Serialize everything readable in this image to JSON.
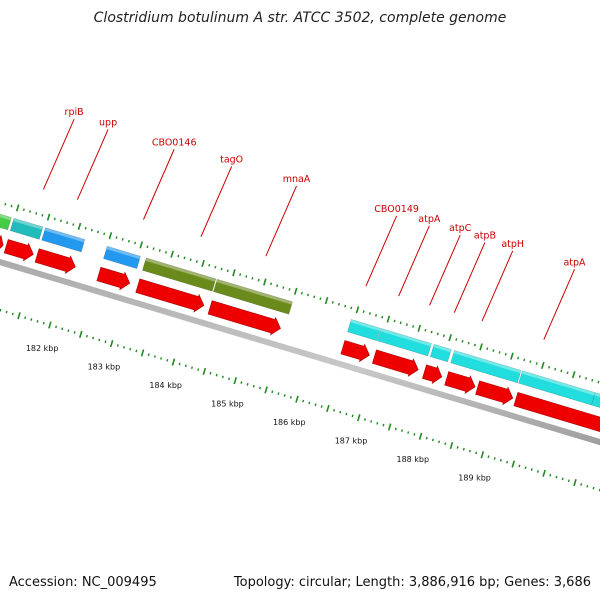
{
  "header": {
    "title": "Clostridium botulinum A str. ATCC 3502, complete genome"
  },
  "footer": {
    "accession": "Accession: NC_009495",
    "summary": "Topology: circular; Length: 3,886,916 bp; Genes: 3,686"
  },
  "colors": {
    "cds": "#ee0000",
    "gene_cyan": "#22dddd",
    "gene_blue": "#2299ee",
    "gene_olive": "#6a8a1c",
    "gene_teal": "#22bbbb",
    "gene_green": "#44cc44",
    "backbone": "#888888",
    "ticks": "#228822",
    "label": "#cc0000"
  },
  "chart_data": {
    "type": "genome-map",
    "units": "kbp",
    "axis_labels": [
      {
        "kbp": 182,
        "label": "182 kbp"
      },
      {
        "kbp": 183,
        "label": "183 kbp"
      },
      {
        "kbp": 184,
        "label": "184 kbp"
      },
      {
        "kbp": 185,
        "label": "185 kbp"
      },
      {
        "kbp": 186,
        "label": "186 kbp"
      },
      {
        "kbp": 187,
        "label": "187 kbp"
      },
      {
        "kbp": 188,
        "label": "188 kbp"
      },
      {
        "kbp": 189,
        "label": "189 kbp"
      }
    ],
    "features": [
      {
        "name": "",
        "start": 180.76,
        "end": 180.95,
        "color": "green",
        "cds": [
          180.76,
          180.95
        ]
      },
      {
        "name": "rpiB",
        "start": 180.99,
        "end": 181.46,
        "color": "teal",
        "cds": [
          181.0,
          181.44
        ]
      },
      {
        "name": "upp",
        "start": 181.5,
        "end": 182.14,
        "color": "blue",
        "cds": [
          181.5,
          182.12
        ]
      },
      {
        "name": "CBO0146",
        "start": 182.5,
        "end": 183.04,
        "color": "blue",
        "cds": [
          182.5,
          183.0
        ]
      },
      {
        "name": "tagO",
        "start": 183.13,
        "end": 184.26,
        "color": "olive",
        "cds": [
          183.13,
          184.2
        ]
      },
      {
        "name": "mnaA",
        "start": 184.28,
        "end": 185.5,
        "color": "olive",
        "cds": [
          184.3,
          185.44
        ]
      },
      {
        "name": "CBO0149",
        "start": 186.45,
        "end": 186.92,
        "color": "cyan",
        "cds": [
          186.45,
          186.88
        ]
      },
      {
        "name": "atpA",
        "start": 186.93,
        "end": 187.75,
        "color": "cyan",
        "cds": [
          186.96,
          187.67
        ]
      },
      {
        "name": "atpC",
        "start": 187.79,
        "end": 188.07,
        "color": "cyan",
        "cds": [
          187.77,
          188.05
        ]
      },
      {
        "name": "atpB",
        "start": 188.12,
        "end": 189.2,
        "color": "cyan",
        "cds": [
          188.13,
          188.59
        ]
      },
      {
        "name": "atpH",
        "start": 189.22,
        "end": 190.4,
        "color": "cyan",
        "cds": [
          188.63,
          189.2
        ]
      },
      {
        "name": "atpA",
        "start": 190.4,
        "end": 191.2,
        "color": "cyan",
        "cds": [
          189.25,
          190.8
        ]
      }
    ],
    "label_anchor_kbp": [
      {
        "name": "rpiB",
        "at": 181.3
      },
      {
        "name": "upp",
        "at": 181.85
      },
      {
        "name": "CBO0146",
        "at": 182.92
      },
      {
        "name": "tagO",
        "at": 183.85
      },
      {
        "name": "mnaA",
        "at": 184.9
      },
      {
        "name": "CBO0149",
        "at": 186.52
      },
      {
        "name": "atpA",
        "at": 187.05
      },
      {
        "name": "atpC",
        "at": 187.55
      },
      {
        "name": "atpB",
        "at": 187.95
      },
      {
        "name": "atpH",
        "at": 188.4
      },
      {
        "name": "atpA",
        "at": 189.4
      }
    ]
  }
}
